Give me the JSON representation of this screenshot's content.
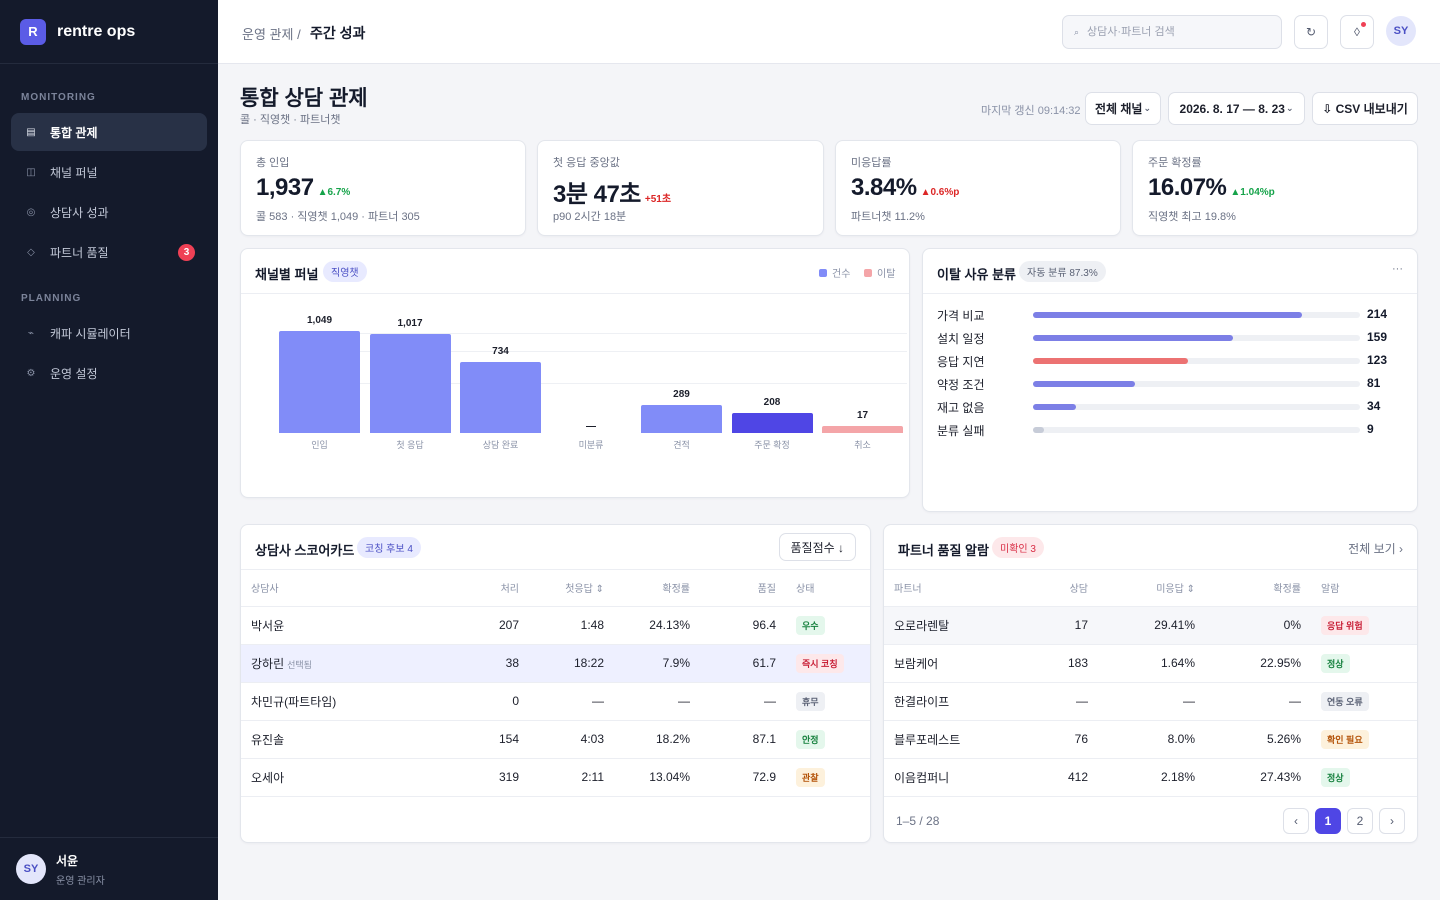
{
  "brand": {
    "logo_letter": "R",
    "name": "rentre ops"
  },
  "sidebar": {
    "section_monitoring": "MONITORING",
    "section_planning": "PLANNING",
    "items": [
      {
        "label": "통합 관제",
        "icon": "dashboard-icon",
        "glyph": "▤"
      },
      {
        "label": "채널 퍼널",
        "icon": "funnel-icon",
        "glyph": "◫"
      },
      {
        "label": "상담사 성과",
        "icon": "agent-icon",
        "glyph": "◎"
      },
      {
        "label": "파트너 품질",
        "icon": "diamond-icon",
        "glyph": "◇",
        "badge": "3"
      },
      {
        "label": "캐파 시뮬레이터",
        "icon": "trend-icon",
        "glyph": "⌁"
      },
      {
        "label": "운영 설정",
        "icon": "settings-icon",
        "glyph": "⚙"
      }
    ],
    "user": {
      "initials": "SY",
      "name": "서윤",
      "role": "운영 관리자"
    }
  },
  "topbar": {
    "breadcrumb_parent": "운영 관제 /",
    "breadcrumb_current": "주간 성과",
    "search_placeholder": "상담사·파트너 검색",
    "search_glyph": "⌕",
    "refresh_glyph": "↻",
    "notif_glyph": "◊",
    "avatar_initials": "SY"
  },
  "page": {
    "title": "통합 상담 관제",
    "subtitle": "콜 · 직영챗 · 파트너챗",
    "last_update": "마지막 갱신 09:14:32",
    "channel_filter": "전체 채널",
    "date_range": "2026. 8. 17 — 8. 23",
    "caret": "⌄",
    "export_label": "⇩ CSV 내보내기"
  },
  "kpis": [
    {
      "label": "총 인입",
      "value": "1,937",
      "delta": "▲6.7%",
      "note": "콜 583 · 직영챗 1,049 · 파트너 305",
      "tone": "good"
    },
    {
      "label": "첫 응답 중앙값",
      "value": "3분 47초",
      "delta": "+51초",
      "note": "p90 2시간 18분",
      "tone": "bad"
    },
    {
      "label": "미응답률",
      "value": "3.84%",
      "delta": "▲0.6%p",
      "note": "파트너챗 11.2%",
      "tone": "bad"
    },
    {
      "label": "주문 확정률",
      "value": "16.07%",
      "delta": "▲1.04%p",
      "note": "직영챗 최고 19.8%",
      "tone": "good"
    }
  ],
  "funnel": {
    "title": "채널별 퍼널",
    "tag": "직영챗",
    "legend": [
      "건수",
      "이탈"
    ],
    "colors": {
      "count": "#818cf8",
      "highlight": "#4f46e5",
      "drop": "#f4a5a8"
    }
  },
  "chart_data": {
    "type": "bar",
    "categories": [
      "인입",
      "첫 응답",
      "상담 완료",
      "미분류",
      "견적",
      "주문 확정",
      "취소"
    ],
    "values": [
      1049,
      1017,
      734,
      null,
      289,
      208,
      17
    ],
    "value_labels": [
      "1,049",
      "1,017",
      "734",
      "—",
      "289",
      "208",
      "17"
    ],
    "series_kind": [
      "count",
      "count",
      "count",
      "none",
      "count",
      "highlight",
      "drop"
    ],
    "ylim": [
      0,
      1200
    ]
  },
  "reasons": {
    "title": "이탈 사유 분류",
    "tag": "자동 분류 87.3%",
    "menu_glyph": "···",
    "items": [
      {
        "label": "가격 비교",
        "value": 214,
        "color": "#7c7fe6"
      },
      {
        "label": "설치 일정",
        "value": 159,
        "color": "#7c7fe6"
      },
      {
        "label": "응답 지연",
        "value": 123,
        "color": "#ec7272"
      },
      {
        "label": "약정 조건",
        "value": 81,
        "color": "#7c7fe6"
      },
      {
        "label": "재고 없음",
        "value": 34,
        "color": "#7c7fe6"
      },
      {
        "label": "분류 실패",
        "value": 9,
        "color": "#c7ccd8"
      }
    ],
    "max": 260
  },
  "scorecard": {
    "title": "상담사 스코어카드",
    "tag": "코칭 후보 4",
    "sort_label": "품질점수 ↓",
    "columns": [
      "상담사",
      "처리",
      "첫응답 ⇕",
      "확정률",
      "품질",
      "상태"
    ],
    "rows": [
      {
        "name": "박서윤",
        "note": "",
        "handled": "207",
        "first": "1:48",
        "rate": "24.13%",
        "quality": "96.4",
        "status": "우수",
        "tone": "good"
      },
      {
        "name": "강하린",
        "note": "선택됨",
        "handled": "38",
        "first": "18:22",
        "rate": "7.9%",
        "quality": "61.7",
        "status": "즉시 코칭",
        "tone": "red",
        "selected": true
      },
      {
        "name": "차민규(파트타임)",
        "note": "",
        "handled": "0",
        "first": "—",
        "rate": "—",
        "quality": "—",
        "status": "휴무",
        "tone": "gray"
      },
      {
        "name": "유진솔",
        "note": "",
        "handled": "154",
        "first": "4:03",
        "rate": "18.2%",
        "quality": "87.1",
        "status": "안정",
        "tone": "good"
      },
      {
        "name": "오세아",
        "note": "",
        "handled": "319",
        "first": "2:11",
        "rate": "13.04%",
        "quality": "72.9",
        "status": "관찰",
        "tone": "amber"
      }
    ]
  },
  "alerts": {
    "title": "파트너 품질 알람",
    "tag": "미확인 3",
    "view_all": "전체 보기 ›",
    "columns": [
      "파트너",
      "상담",
      "미응답 ⇕",
      "확정률",
      "알람"
    ],
    "rows": [
      {
        "name": "오로라렌탈",
        "count": "17",
        "miss": "29.41%",
        "rate": "0%",
        "alarm": "응답 위험",
        "tone": "red",
        "hover": true
      },
      {
        "name": "보람케어",
        "count": "183",
        "miss": "1.64%",
        "rate": "22.95%",
        "alarm": "정상",
        "tone": "good"
      },
      {
        "name": "한결라이프",
        "count": "—",
        "miss": "—",
        "rate": "—",
        "alarm": "연동 오류",
        "tone": "gray"
      },
      {
        "name": "블루포레스트",
        "count": "76",
        "miss": "8.0%",
        "rate": "5.26%",
        "alarm": "확인 필요",
        "tone": "amber"
      },
      {
        "name": "이음컴퍼니",
        "count": "412",
        "miss": "2.18%",
        "rate": "27.43%",
        "alarm": "정상",
        "tone": "good"
      }
    ],
    "pager_info": "1–5 / 28",
    "pages": [
      "‹",
      "1",
      "2",
      "›"
    ],
    "current_page": "1"
  }
}
